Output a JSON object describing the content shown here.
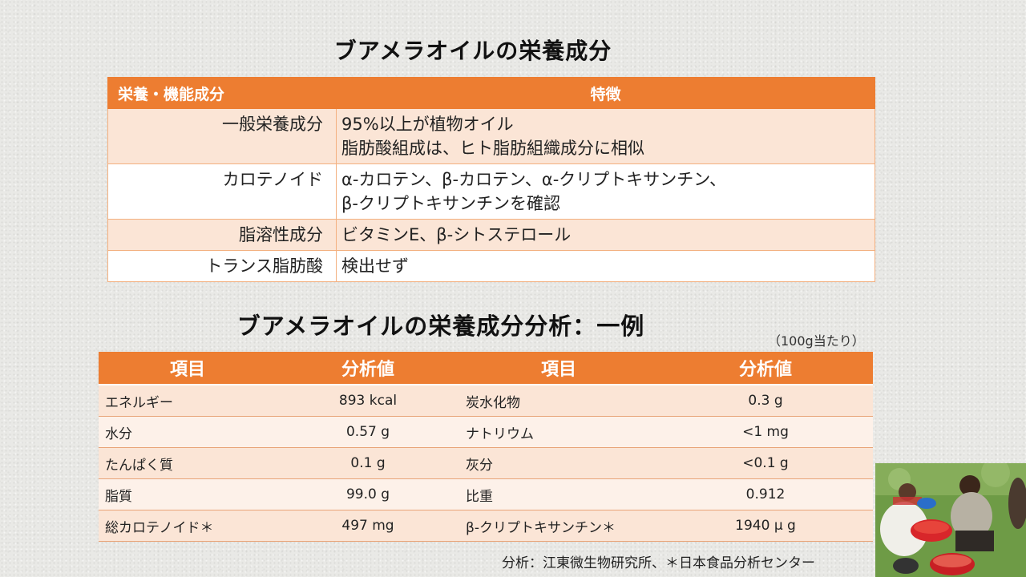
{
  "title_main": "ブアメラオイルの栄養成分",
  "table1": {
    "headers": [
      "栄養・機能成分",
      "特徴"
    ],
    "rows": [
      {
        "label": "一般栄養成分",
        "lines": [
          "95%以上が植物オイル",
          "脂肪酸組成は、ヒト脂肪組織成分に相似"
        ]
      },
      {
        "label": "カロテノイド",
        "lines": [
          "α-カロテン、β‐カロテン、α-クリプトキサンチン、",
          "β‐クリプトキサンチンを確認"
        ]
      },
      {
        "label": "脂溶性成分",
        "lines": [
          "ビタミンE、β‐シトステロール"
        ]
      },
      {
        "label": "トランス脂肪酸",
        "lines": [
          "検出せず"
        ]
      }
    ]
  },
  "title_analysis": "ブアメラオイルの栄養成分分析：一例",
  "unit_note": "（100g当たり）",
  "table2": {
    "headers": [
      "項目",
      "分析値",
      "項目",
      "分析値"
    ],
    "rows": [
      [
        "エネルギー",
        "893 kcal",
        "炭水化物",
        "0.3 g"
      ],
      [
        "水分",
        "0.57 g",
        "ナトリウム",
        "<1 mg"
      ],
      [
        "たんぱく質",
        "0.1 g",
        "灰分",
        "<0.1 g"
      ],
      [
        "脂質",
        "99.0 g",
        "比重",
        "0.912"
      ],
      [
        "総カロテノイド＊",
        "497 mg",
        "β‐クリプトキサンチン＊",
        "1940 μ g"
      ]
    ]
  },
  "source": "分析：江東微生物研究所、＊日本食品分析センター"
}
